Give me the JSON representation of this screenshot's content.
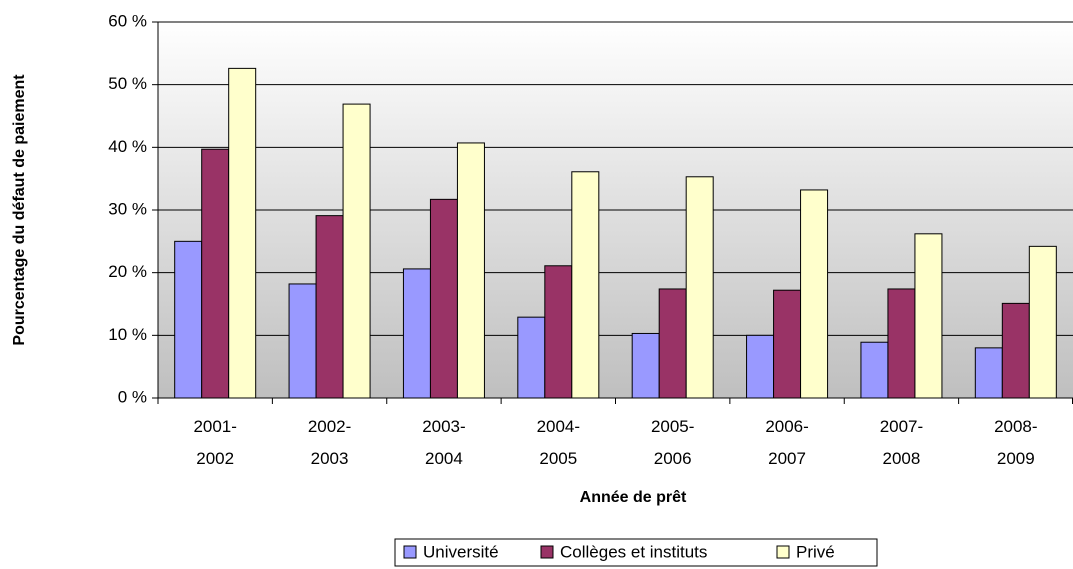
{
  "chart_data": {
    "type": "bar",
    "categories": [
      "2001-2002",
      "2002-2003",
      "2003-2004",
      "2004-2005",
      "2005-2006",
      "2006-2007",
      "2007-2008",
      "2008-2009"
    ],
    "series": [
      {
        "name": "Université",
        "color": "#9999ff",
        "values": [
          25,
          18.2,
          20.6,
          12.9,
          10.3,
          10,
          8.9,
          8
        ]
      },
      {
        "name": "Collèges et instituts",
        "color": "#993366",
        "values": [
          39.7,
          29.1,
          31.7,
          21.1,
          17.4,
          17.2,
          17.4,
          15.1
        ]
      },
      {
        "name": "Privé",
        "color": "#ffffcc",
        "values": [
          52.6,
          46.9,
          40.7,
          36.1,
          35.3,
          33.2,
          26.2,
          24.2
        ]
      }
    ],
    "x_label": "Année de prêt",
    "y_label": "Pourcentage du défaut de paiement",
    "ylim": [
      0,
      60
    ],
    "yticks": [
      {
        "value": 0,
        "label": "0 %"
      },
      {
        "value": 10,
        "label": "10 %"
      },
      {
        "value": 20,
        "label": "20 %"
      },
      {
        "value": 30,
        "label": "30 %"
      },
      {
        "value": 40,
        "label": "40 %"
      },
      {
        "value": 50,
        "label": "50 %"
      },
      {
        "value": 60,
        "label": "60 %"
      }
    ],
    "grid": true,
    "legend": "bottom"
  }
}
